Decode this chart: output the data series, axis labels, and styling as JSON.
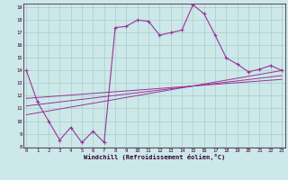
{
  "xlabel": "Windchill (Refroidissement éolien,°C)",
  "bg_color": "#cce8e8",
  "grid_color": "#aacccc",
  "line_color": "#993399",
  "xmin": 0,
  "xmax": 23,
  "ymin": 8,
  "ymax": 19,
  "main_x": [
    0,
    1,
    2,
    3,
    4,
    5,
    6,
    7,
    8,
    9,
    10,
    11,
    12,
    13,
    14,
    15,
    16,
    17,
    18,
    19,
    20,
    21,
    22,
    23
  ],
  "main_y": [
    14.0,
    11.5,
    10.0,
    8.5,
    9.5,
    8.3,
    9.2,
    8.3,
    17.4,
    17.5,
    18.0,
    17.9,
    16.8,
    17.0,
    17.2,
    19.2,
    18.5,
    16.8,
    15.0,
    14.5,
    13.9,
    14.1,
    14.4,
    14.0
  ],
  "line1_x": [
    0,
    23
  ],
  "line1_y": [
    10.5,
    14.0
  ],
  "line2_x": [
    0,
    23
  ],
  "line2_y": [
    11.2,
    13.6
  ],
  "line3_x": [
    0,
    23
  ],
  "line3_y": [
    11.8,
    13.3
  ]
}
